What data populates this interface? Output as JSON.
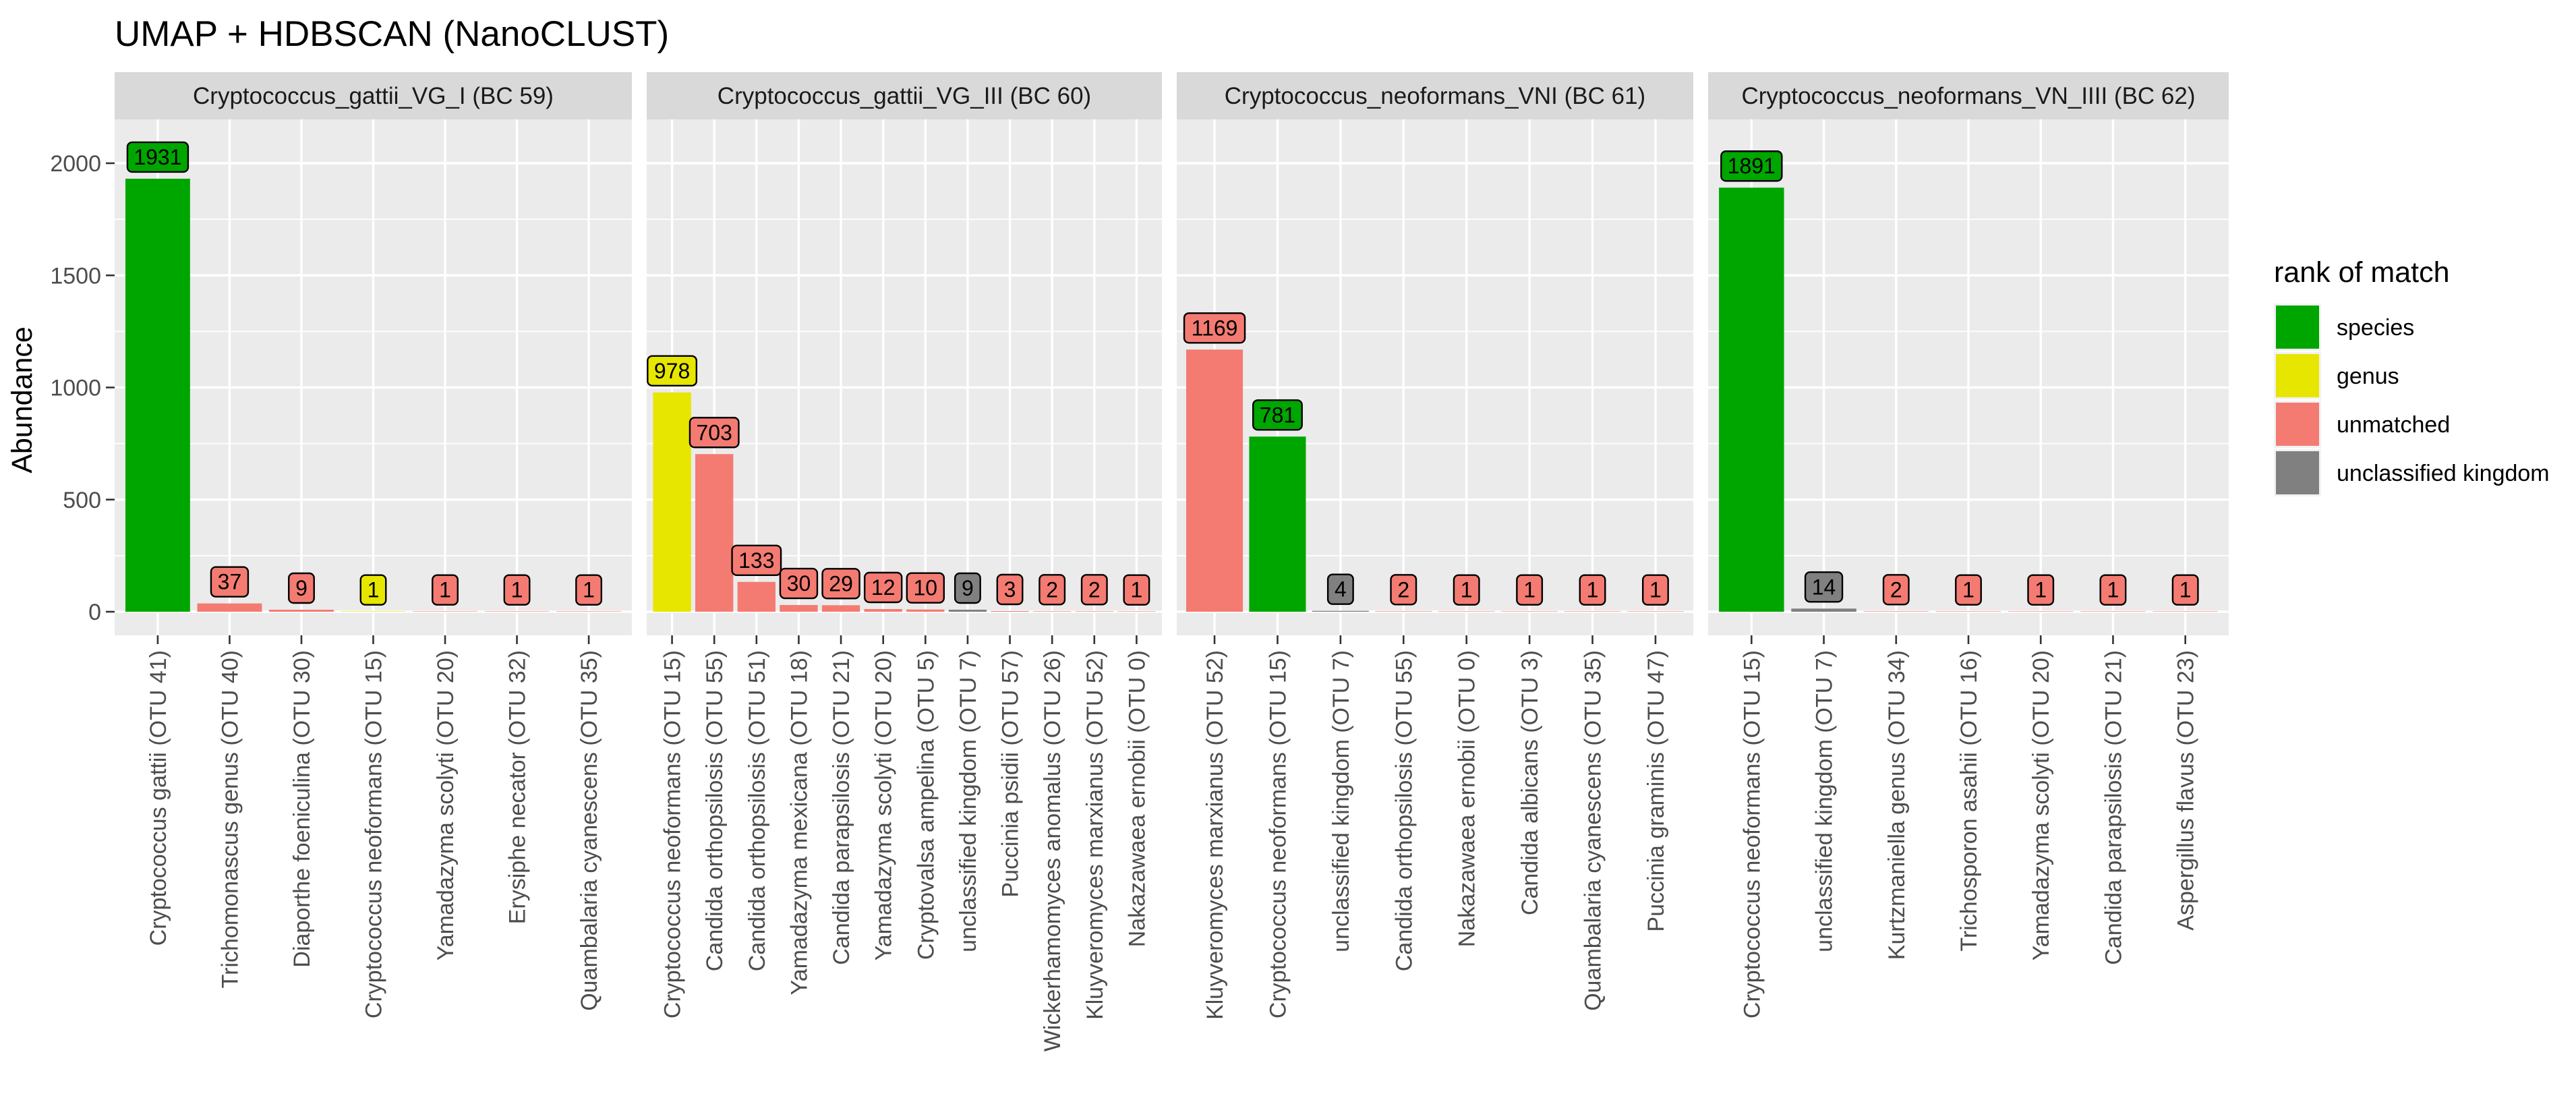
{
  "chart_data": {
    "type": "bar",
    "title": "UMAP + HDBSCAN (NanoCLUST)",
    "ylabel": "Abundance",
    "xlabel": "",
    "ylim": [
      0,
      2150
    ],
    "yticks": [
      0,
      500,
      1000,
      1500,
      2000
    ],
    "grid": true,
    "legend": {
      "title": "rank of match",
      "position": "right",
      "entries": [
        {
          "label": "species",
          "color": "#00A600"
        },
        {
          "label": "genus",
          "color": "#E6E600"
        },
        {
          "label": "unmatched",
          "color": "#F47B72"
        },
        {
          "label": "unclassified kingdom",
          "color": "#808080"
        }
      ]
    },
    "facets": [
      {
        "strip": "Cryptococcus_gattii_VG_I (BC 59)",
        "categories": [
          "Cryptococcus gattii (OTU 41)",
          "Trichomonascus genus (OTU 40)",
          "Diaporthe foeniculina (OTU 30)",
          "Cryptococcus neoformans (OTU 15)",
          "Yamadazyma scolyti (OTU 20)",
          "Erysiphe necator (OTU 32)",
          "Quambalaria cyanescens (OTU 35)"
        ],
        "values": [
          1931,
          37,
          9,
          1,
          1,
          1,
          1
        ],
        "ranks": [
          "species",
          "unmatched",
          "unmatched",
          "genus",
          "unmatched",
          "unmatched",
          "unmatched"
        ]
      },
      {
        "strip": "Cryptococcus_gattii_VG_III (BC 60)",
        "categories": [
          "Cryptococcus neoformans (OTU 15)",
          "Candida orthopsilosis (OTU 55)",
          "Candida orthopsilosis (OTU 51)",
          "Yamadazyma mexicana (OTU 18)",
          "Candida parapsilosis (OTU 21)",
          "Yamadazyma scolyti (OTU 20)",
          "Cryptovalsa ampelina (OTU 5)",
          "unclassified kingdom (OTU 7)",
          "Puccinia psidii (OTU 57)",
          "Wickerhamomyces anomalus (OTU 26)",
          "Kluyveromyces marxianus (OTU 52)",
          "Nakazawaea ernobii (OTU 0)"
        ],
        "values": [
          978,
          703,
          133,
          30,
          29,
          12,
          10,
          9,
          3,
          2,
          2,
          1
        ],
        "ranks": [
          "genus",
          "unmatched",
          "unmatched",
          "unmatched",
          "unmatched",
          "unmatched",
          "unmatched",
          "unclassified kingdom",
          "unmatched",
          "unmatched",
          "unmatched",
          "unmatched"
        ]
      },
      {
        "strip": "Cryptococcus_neoformans_VNI (BC 61)",
        "categories": [
          "Kluyveromyces marxianus (OTU 52)",
          "Cryptococcus neoformans (OTU 15)",
          "unclassified kingdom (OTU 7)",
          "Candida orthopsilosis (OTU 55)",
          "Nakazawaea ernobii (OTU 0)",
          "Candida albicans (OTU 3)",
          "Quambalaria cyanescens (OTU 35)",
          "Puccinia graminis (OTU 47)"
        ],
        "values": [
          1169,
          781,
          4,
          2,
          1,
          1,
          1,
          1
        ],
        "ranks": [
          "unmatched",
          "species",
          "unclassified kingdom",
          "unmatched",
          "unmatched",
          "unmatched",
          "unmatched",
          "unmatched"
        ]
      },
      {
        "strip": "Cryptococcus_neoformans_VN_IIII (BC 62)",
        "categories": [
          "Cryptococcus neoformans (OTU 15)",
          "unclassified kingdom (OTU 7)",
          "Kurtzmaniella genus (OTU 34)",
          "Trichosporon asahii (OTU 16)",
          "Yamadazyma scolyti (OTU 20)",
          "Candida parapsilosis (OTU 21)",
          "Aspergillus flavus (OTU 23)"
        ],
        "values": [
          1891,
          14,
          2,
          1,
          1,
          1,
          1
        ],
        "ranks": [
          "species",
          "unclassified kingdom",
          "unmatched",
          "unmatched",
          "unmatched",
          "unmatched",
          "unmatched"
        ]
      }
    ]
  }
}
